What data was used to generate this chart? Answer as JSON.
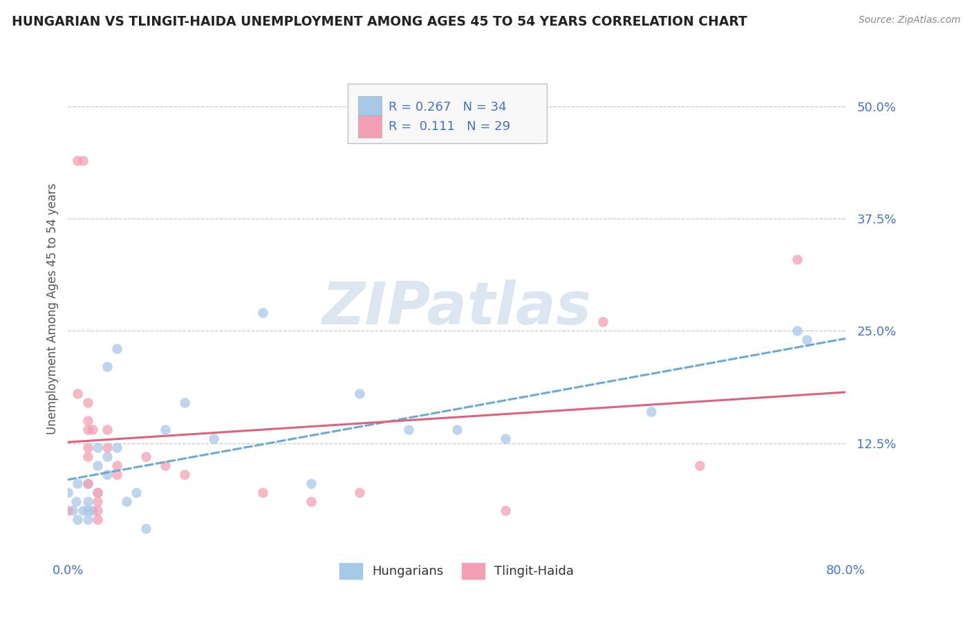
{
  "title": "HUNGARIAN VS TLINGIT-HAIDA UNEMPLOYMENT AMONG AGES 45 TO 54 YEARS CORRELATION CHART",
  "source": "Source: ZipAtlas.com",
  "ylabel": "Unemployment Among Ages 45 to 54 years",
  "xlim": [
    0.0,
    0.8
  ],
  "ylim": [
    0.0,
    0.55
  ],
  "yticks": [
    0.0,
    0.125,
    0.25,
    0.375,
    0.5
  ],
  "ytick_labels": [
    "",
    "12.5%",
    "25.0%",
    "37.5%",
    "50.0%"
  ],
  "watermark": "ZIPatlas",
  "stat_box": {
    "hungarian_R": "0.267",
    "hungarian_N": "34",
    "tlingit_R": "0.111",
    "tlingit_N": "29"
  },
  "hungarian_scatter": [
    [
      0.0,
      0.07
    ],
    [
      0.005,
      0.05
    ],
    [
      0.008,
      0.06
    ],
    [
      0.01,
      0.08
    ],
    [
      0.01,
      0.04
    ],
    [
      0.015,
      0.05
    ],
    [
      0.02,
      0.06
    ],
    [
      0.02,
      0.05
    ],
    [
      0.02,
      0.04
    ],
    [
      0.02,
      0.08
    ],
    [
      0.025,
      0.05
    ],
    [
      0.03,
      0.07
    ],
    [
      0.03,
      0.12
    ],
    [
      0.03,
      0.1
    ],
    [
      0.04,
      0.09
    ],
    [
      0.04,
      0.11
    ],
    [
      0.04,
      0.21
    ],
    [
      0.05,
      0.23
    ],
    [
      0.05,
      0.12
    ],
    [
      0.06,
      0.06
    ],
    [
      0.07,
      0.07
    ],
    [
      0.08,
      0.03
    ],
    [
      0.1,
      0.14
    ],
    [
      0.12,
      0.17
    ],
    [
      0.15,
      0.13
    ],
    [
      0.2,
      0.27
    ],
    [
      0.25,
      0.08
    ],
    [
      0.3,
      0.18
    ],
    [
      0.35,
      0.14
    ],
    [
      0.4,
      0.14
    ],
    [
      0.45,
      0.13
    ],
    [
      0.6,
      0.16
    ],
    [
      0.75,
      0.25
    ],
    [
      0.76,
      0.24
    ]
  ],
  "tlingit_scatter": [
    [
      0.0,
      0.05
    ],
    [
      0.01,
      0.44
    ],
    [
      0.015,
      0.44
    ],
    [
      0.01,
      0.18
    ],
    [
      0.02,
      0.17
    ],
    [
      0.02,
      0.15
    ],
    [
      0.02,
      0.14
    ],
    [
      0.025,
      0.14
    ],
    [
      0.02,
      0.12
    ],
    [
      0.02,
      0.11
    ],
    [
      0.02,
      0.08
    ],
    [
      0.03,
      0.07
    ],
    [
      0.03,
      0.06
    ],
    [
      0.03,
      0.05
    ],
    [
      0.03,
      0.04
    ],
    [
      0.04,
      0.14
    ],
    [
      0.04,
      0.12
    ],
    [
      0.05,
      0.1
    ],
    [
      0.05,
      0.09
    ],
    [
      0.08,
      0.11
    ],
    [
      0.1,
      0.1
    ],
    [
      0.12,
      0.09
    ],
    [
      0.2,
      0.07
    ],
    [
      0.25,
      0.06
    ],
    [
      0.3,
      0.07
    ],
    [
      0.45,
      0.05
    ],
    [
      0.55,
      0.26
    ],
    [
      0.65,
      0.1
    ],
    [
      0.75,
      0.33
    ]
  ],
  "hungarian_color": "#a8c8e8",
  "tlingit_color": "#f4a0b4",
  "trendline_hungarian_color": "#6aaad4",
  "trendline_tlingit_color": "#e06080",
  "grid_color": "#c8c8c8",
  "grid_linestyle": "--",
  "background_color": "#ffffff",
  "title_color": "#222222",
  "axis_label_color": "#4472c4",
  "ylabel_color": "#555555",
  "watermark_color": "#dce6f0"
}
